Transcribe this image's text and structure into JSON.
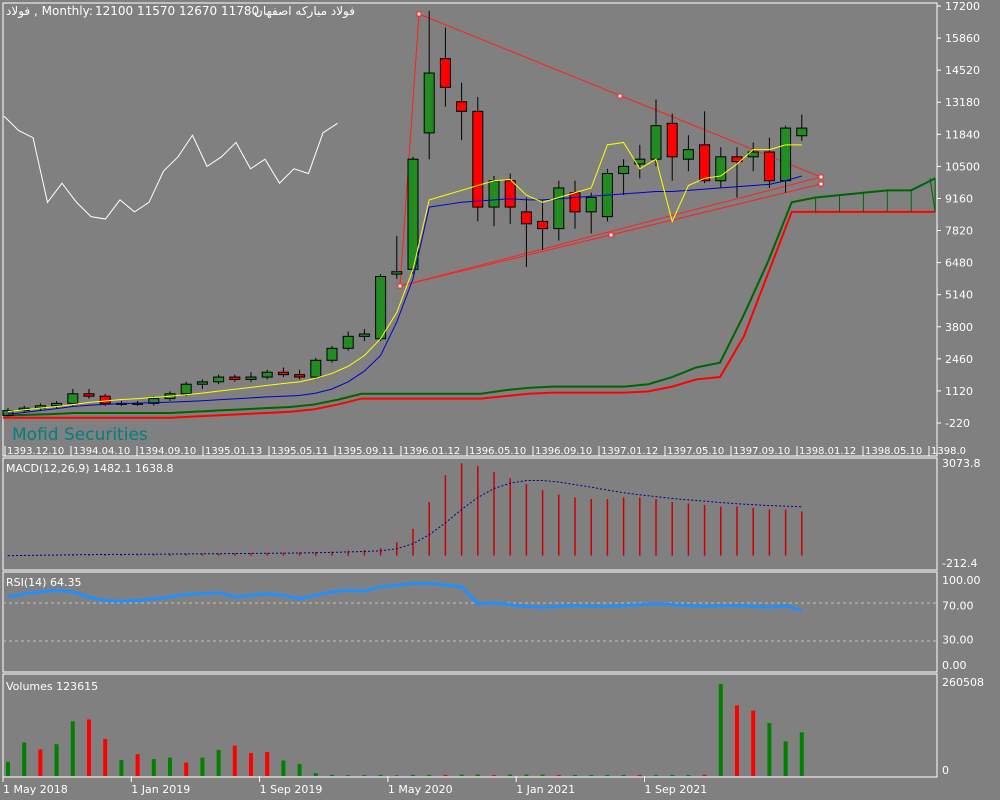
{
  "header": {
    "symbol": "فولاد",
    "timeframe": "Monthly",
    "ohlc": "12100 11570 12670 11780",
    "company": "فولاد مبارکه اصفهان"
  },
  "watermark": "Mofid Securities",
  "colors": {
    "background": "#808080",
    "bull": "#228b22",
    "bear": "#ff0000",
    "ma_fast": "#ffff00",
    "ma_slow": "#0000cc",
    "triangle": "#ff2020",
    "macd_hist": "#cc0000",
    "macd_signal": "#00008b",
    "rsi": "#1e90ff",
    "volume_up": "#008000",
    "volume_down": "#ff0000"
  },
  "price_axis": {
    "ticks": [
      "17200",
      "15860",
      "14520",
      "13180",
      "11840",
      "10500",
      "9160",
      "7820",
      "6480",
      "5140",
      "3800",
      "2460",
      "1120",
      "-220"
    ]
  },
  "jalali_axis": {
    "ticks": [
      "1393.12.10",
      "1394.04.10",
      "1394.09.10",
      "1395.01.13",
      "1395.05.11",
      "1395.09.11",
      "1396.01.12",
      "1396.05.10",
      "1396.09.10",
      "1397.01.12",
      "1397.05.10",
      "1397.09.10",
      "1398.01.12",
      "1398.05.10",
      "1398.0"
    ]
  },
  "macd": {
    "label": "MACD(12,26,9)",
    "values": "1482.1 1638.8",
    "axis_max": "3073.8",
    "axis_min": "-212.4"
  },
  "rsi": {
    "label": "RSI(14)",
    "value": "64.35",
    "levels": [
      "100.00",
      "70.00",
      "30.00",
      "0.00"
    ]
  },
  "volume": {
    "label": "Volumes",
    "value": "123615",
    "axis_max": "260508",
    "axis_min": "0"
  },
  "date_axis": {
    "ticks": [
      "1 May 2018",
      "1 Jan 2019",
      "1 Sep 2019",
      "1 May 2020",
      "1 Jan 2021",
      "1 Sep 2021"
    ]
  },
  "chart_data": [
    {
      "type": "candlestick",
      "title": "فولاد, Monthly",
      "yrange": [
        -220,
        17200
      ],
      "candles": [
        {
          "o": 100,
          "h": 400,
          "l": 50,
          "c": 300
        },
        {
          "o": 300,
          "h": 500,
          "l": 200,
          "c": 400
        },
        {
          "o": 400,
          "h": 600,
          "l": 300,
          "c": 500
        },
        {
          "o": 500,
          "h": 700,
          "l": 400,
          "c": 600
        },
        {
          "o": 600,
          "h": 1200,
          "l": 500,
          "c": 1000
        },
        {
          "o": 1000,
          "h": 1200,
          "l": 800,
          "c": 900
        },
        {
          "o": 900,
          "h": 1000,
          "l": 500,
          "c": 600
        },
        {
          "o": 600,
          "h": 700,
          "l": 500,
          "c": 600
        },
        {
          "o": 600,
          "h": 700,
          "l": 500,
          "c": 600
        },
        {
          "o": 600,
          "h": 900,
          "l": 500,
          "c": 800
        },
        {
          "o": 800,
          "h": 1100,
          "l": 700,
          "c": 1000
        },
        {
          "o": 1000,
          "h": 1500,
          "l": 900,
          "c": 1400
        },
        {
          "o": 1400,
          "h": 1600,
          "l": 1200,
          "c": 1500
        },
        {
          "o": 1500,
          "h": 1800,
          "l": 1400,
          "c": 1700
        },
        {
          "o": 1700,
          "h": 1800,
          "l": 1500,
          "c": 1600
        },
        {
          "o": 1600,
          "h": 1900,
          "l": 1500,
          "c": 1700
        },
        {
          "o": 1700,
          "h": 2000,
          "l": 1600,
          "c": 1900
        },
        {
          "o": 1900,
          "h": 2100,
          "l": 1700,
          "c": 1800
        },
        {
          "o": 1800,
          "h": 2000,
          "l": 1600,
          "c": 1700
        },
        {
          "o": 1700,
          "h": 2500,
          "l": 1600,
          "c": 2400
        },
        {
          "o": 2400,
          "h": 3000,
          "l": 2300,
          "c": 2900
        },
        {
          "o": 2900,
          "h": 3600,
          "l": 2800,
          "c": 3400
        },
        {
          "o": 3400,
          "h": 3700,
          "l": 3200,
          "c": 3500
        },
        {
          "o": 3300,
          "h": 6000,
          "l": 3200,
          "c": 5900
        },
        {
          "o": 6000,
          "h": 7600,
          "l": 5800,
          "c": 6100
        },
        {
          "o": 6200,
          "h": 10900,
          "l": 6000,
          "c": 10800
        },
        {
          "o": 11900,
          "h": 17000,
          "l": 10800,
          "c": 14400
        },
        {
          "o": 15000,
          "h": 16300,
          "l": 13000,
          "c": 13800
        },
        {
          "o": 13200,
          "h": 14000,
          "l": 11600,
          "c": 12800
        },
        {
          "o": 12800,
          "h": 13400,
          "l": 8200,
          "c": 8800
        },
        {
          "o": 8800,
          "h": 10100,
          "l": 8000,
          "c": 9900
        },
        {
          "o": 9900,
          "h": 10200,
          "l": 8100,
          "c": 8800
        },
        {
          "o": 8600,
          "h": 9200,
          "l": 6300,
          "c": 8100
        },
        {
          "o": 8200,
          "h": 9100,
          "l": 7000,
          "c": 7900
        },
        {
          "o": 7900,
          "h": 9900,
          "l": 7400,
          "c": 9600
        },
        {
          "o": 9400,
          "h": 9900,
          "l": 7900,
          "c": 8600
        },
        {
          "o": 8600,
          "h": 9400,
          "l": 7700,
          "c": 9200
        },
        {
          "o": 8400,
          "h": 10400,
          "l": 8200,
          "c": 10200
        },
        {
          "o": 10200,
          "h": 10800,
          "l": 9300,
          "c": 10500
        },
        {
          "o": 10600,
          "h": 11400,
          "l": 10000,
          "c": 10800
        },
        {
          "o": 10800,
          "h": 13300,
          "l": 10500,
          "c": 12200
        },
        {
          "o": 12300,
          "h": 12700,
          "l": 9900,
          "c": 10900
        },
        {
          "o": 10800,
          "h": 11800,
          "l": 10300,
          "c": 11200
        },
        {
          "o": 11400,
          "h": 12800,
          "l": 9800,
          "c": 9900
        },
        {
          "o": 9900,
          "h": 11300,
          "l": 9600,
          "c": 10900
        },
        {
          "o": 10900,
          "h": 11300,
          "l": 9200,
          "c": 10700
        },
        {
          "o": 10900,
          "h": 11500,
          "l": 10300,
          "c": 11100
        },
        {
          "o": 11100,
          "h": 11700,
          "l": 9600,
          "c": 9900
        },
        {
          "o": 9900,
          "h": 12200,
          "l": 9400,
          "c": 12100
        },
        {
          "o": 11780,
          "h": 12670,
          "l": 11570,
          "c": 12100
        }
      ],
      "ma_fast": [
        260,
        330,
        400,
        470,
        550,
        640,
        700,
        760,
        800,
        850,
        900,
        960,
        1030,
        1110,
        1190,
        1270,
        1350,
        1430,
        1500,
        1650,
        1850,
        2150,
        2600,
        3300,
        4400,
        6200,
        9100,
        9300,
        9500,
        9700,
        9900,
        9950,
        9300,
        9000,
        9200,
        9400,
        9600,
        11400,
        11500,
        10400,
        10800,
        8200,
        9700,
        10000,
        10100,
        10600,
        11200,
        11200,
        11400,
        11400
      ],
      "ma_slow": [
        150,
        220,
        300,
        380,
        470,
        520,
        560,
        590,
        610,
        630,
        650,
        680,
        710,
        750,
        790,
        830,
        870,
        900,
        930,
        1030,
        1200,
        1500,
        1950,
        2600,
        4000,
        5800,
        8800,
        8900,
        9000,
        9050,
        9100,
        9150,
        9100,
        9100,
        9150,
        9200,
        9250,
        9300,
        9350,
        9400,
        9450,
        9450,
        9500,
        9550,
        9600,
        9650,
        9700,
        9750,
        9900,
        10100
      ],
      "comparison_line": [
        12600,
        12000,
        11700,
        9000,
        9800,
        9000,
        8400,
        8300,
        9100,
        8600,
        9000,
        10300,
        10900,
        11800,
        10500,
        10900,
        11500,
        10400,
        10800,
        9800,
        10400,
        10200,
        11900,
        12300
      ]
    },
    {
      "type": "line",
      "name": "future_projection",
      "upper": [
        100,
        120,
        150,
        200,
        200,
        200,
        200,
        200,
        250,
        300,
        350,
        400,
        450,
        550,
        750,
        1000,
        1000,
        1000,
        1000,
        1000,
        1000,
        1150,
        1250,
        1300,
        1300,
        1300,
        1300,
        1400,
        1700,
        2100,
        2300,
        4300,
        6500,
        9000,
        9200,
        9300,
        9400,
        9500,
        9500,
        10000
      ],
      "lower": [
        0,
        0,
        0,
        0,
        0,
        0,
        0,
        0,
        50,
        100,
        150,
        200,
        250,
        350,
        550,
        800,
        800,
        800,
        800,
        800,
        800,
        900,
        1000,
        1050,
        1050,
        1050,
        1050,
        1100,
        1300,
        1600,
        1700,
        3400,
        6000,
        8600,
        8600,
        8600,
        8600,
        8600,
        8600,
        8600
      ]
    },
    {
      "type": "bar",
      "name": "MACD(12,26,9)",
      "histogram": [
        20,
        22,
        25,
        30,
        40,
        45,
        48,
        48,
        50,
        55,
        60,
        65,
        70,
        75,
        80,
        90,
        95,
        100,
        110,
        120,
        140,
        160,
        190,
        250,
        450,
        900,
        1800,
        2700,
        3100,
        3000,
        2800,
        2600,
        2400,
        2200,
        2050,
        1950,
        1900,
        1900,
        1950,
        1950,
        1900,
        1800,
        1750,
        1700,
        1650,
        1650,
        1600,
        1550,
        1550,
        1482.1
      ],
      "signal": [
        0,
        8,
        15,
        22,
        30,
        35,
        40,
        43,
        46,
        50,
        55,
        58,
        62,
        65,
        70,
        75,
        80,
        85,
        90,
        100,
        110,
        125,
        140,
        165,
        230,
        400,
        700,
        1100,
        1550,
        1950,
        2250,
        2430,
        2520,
        2520,
        2470,
        2380,
        2300,
        2200,
        2110,
        2040,
        1980,
        1920,
        1870,
        1830,
        1780,
        1740,
        1710,
        1680,
        1660,
        1638.8
      ]
    },
    {
      "type": "line",
      "name": "RSI(14)",
      "values": [
        80,
        84,
        86,
        88,
        86,
        80,
        76,
        75,
        76,
        78,
        80,
        83,
        84,
        85,
        80,
        82,
        84,
        82,
        78,
        82,
        86,
        88,
        87,
        92,
        94,
        96,
        96,
        94,
        92,
        72,
        73,
        71,
        69,
        68,
        69,
        70,
        69,
        69,
        70,
        71,
        72,
        71,
        70,
        69,
        70,
        70,
        69,
        68,
        70,
        64.35
      ]
    },
    {
      "type": "bar",
      "name": "Volumes",
      "up": [
        true,
        true,
        false,
        true,
        true,
        false,
        false,
        true,
        false,
        true,
        true,
        false,
        true,
        true,
        false,
        false,
        false,
        true,
        true,
        true,
        true,
        true,
        true,
        true,
        true,
        true,
        true,
        false,
        true,
        true,
        false,
        true,
        true,
        true,
        false,
        true,
        true,
        true,
        true,
        false,
        true,
        true,
        true,
        false,
        true,
        false,
        false,
        true,
        true,
        true
      ],
      "values": [
        40000,
        95000,
        75000,
        90000,
        155000,
        160000,
        105000,
        45000,
        62000,
        48000,
        52000,
        38000,
        52000,
        74000,
        86000,
        65000,
        68000,
        44000,
        34000,
        8000,
        3000,
        2500,
        2500,
        3000,
        2000,
        3000,
        3500,
        3000,
        4000,
        4500,
        2500,
        4500,
        4500,
        4000,
        3000,
        3000,
        3000,
        3000,
        3000,
        3000,
        2500,
        3000,
        3000,
        3500,
        260508,
        200000,
        185000,
        150000,
        98000,
        123615
      ]
    }
  ]
}
